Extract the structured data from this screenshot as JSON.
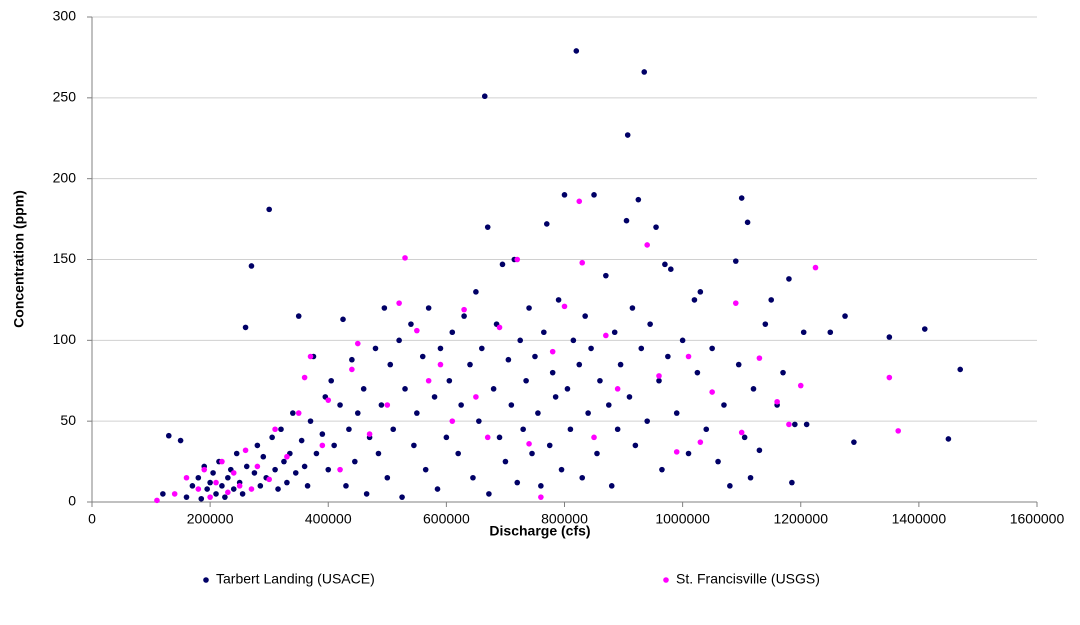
{
  "chart_data": {
    "type": "scatter",
    "x_label": "Discharge (cfs)",
    "y_label": "Concentration (ppm)",
    "xlim": [
      0,
      1600000
    ],
    "xticks": [
      0,
      200000,
      400000,
      600000,
      800000,
      1000000,
      1200000,
      1400000,
      1600000
    ],
    "ylim": [
      0,
      300
    ],
    "yticks": [
      0,
      50,
      100,
      150,
      200,
      250,
      300
    ],
    "grid": true,
    "legend": "bottom",
    "series": [
      {
        "name": "Tarbert Landing (USACE)",
        "color": "#000066",
        "x": [
          120000,
          130000,
          150000,
          160000,
          170000,
          180000,
          185000,
          190000,
          195000,
          200000,
          205000,
          210000,
          215000,
          220000,
          225000,
          230000,
          235000,
          240000,
          245000,
          250000,
          255000,
          260000,
          262000,
          270000,
          275000,
          280000,
          285000,
          290000,
          295000,
          300000,
          305000,
          310000,
          315000,
          320000,
          325000,
          330000,
          335000,
          340000,
          345000,
          350000,
          355000,
          360000,
          365000,
          370000,
          375000,
          380000,
          390000,
          395000,
          400000,
          405000,
          410000,
          420000,
          425000,
          430000,
          435000,
          440000,
          445000,
          450000,
          460000,
          465000,
          470000,
          480000,
          485000,
          490000,
          495000,
          500000,
          505000,
          510000,
          520000,
          525000,
          530000,
          540000,
          545000,
          550000,
          560000,
          565000,
          570000,
          580000,
          585000,
          590000,
          600000,
          605000,
          610000,
          620000,
          625000,
          630000,
          640000,
          645000,
          650000,
          655000,
          660000,
          665000,
          670000,
          672000,
          680000,
          685000,
          690000,
          695000,
          700000,
          705000,
          710000,
          715000,
          720000,
          725000,
          730000,
          735000,
          740000,
          745000,
          750000,
          755000,
          760000,
          765000,
          770000,
          775000,
          780000,
          785000,
          790000,
          795000,
          800000,
          805000,
          810000,
          815000,
          820000,
          825000,
          830000,
          835000,
          840000,
          845000,
          850000,
          855000,
          860000,
          870000,
          875000,
          880000,
          885000,
          890000,
          895000,
          905000,
          907000,
          910000,
          915000,
          920000,
          925000,
          930000,
          935000,
          940000,
          945000,
          955000,
          960000,
          965000,
          970000,
          975000,
          980000,
          990000,
          1000000,
          1010000,
          1020000,
          1025000,
          1030000,
          1040000,
          1050000,
          1060000,
          1070000,
          1080000,
          1090000,
          1095000,
          1100000,
          1105000,
          1110000,
          1115000,
          1120000,
          1130000,
          1140000,
          1150000,
          1160000,
          1170000,
          1180000,
          1185000,
          1190000,
          1205000,
          1210000,
          1250000,
          1275000,
          1290000,
          1350000,
          1410000,
          1450000,
          1470000
        ],
        "values": [
          5,
          41,
          38,
          3,
          10,
          15,
          2,
          22,
          8,
          12,
          18,
          5,
          25,
          10,
          3,
          15,
          20,
          8,
          30,
          12,
          5,
          108,
          22,
          146,
          18,
          35,
          10,
          28,
          15,
          181,
          40,
          20,
          8,
          45,
          25,
          12,
          30,
          55,
          18,
          115,
          38,
          22,
          10,
          50,
          90,
          30,
          42,
          65,
          20,
          75,
          35,
          60,
          113,
          10,
          45,
          88,
          25,
          55,
          70,
          5,
          40,
          95,
          30,
          60,
          120,
          15,
          85,
          45,
          100,
          3,
          70,
          110,
          35,
          55,
          90,
          20,
          120,
          65,
          8,
          95,
          40,
          75,
          105,
          30,
          60,
          115,
          85,
          15,
          130,
          50,
          95,
          251,
          170,
          5,
          70,
          110,
          40,
          147,
          25,
          88,
          60,
          150,
          12,
          100,
          45,
          75,
          120,
          30,
          90,
          55,
          10,
          105,
          172,
          35,
          80,
          65,
          125,
          20,
          190,
          70,
          45,
          100,
          279,
          85,
          15,
          115,
          55,
          95,
          190,
          30,
          75,
          140,
          60,
          10,
          105,
          45,
          85,
          174,
          227,
          65,
          120,
          35,
          187,
          95,
          266,
          50,
          110,
          170,
          75,
          20,
          147,
          90,
          144,
          55,
          100,
          30,
          125,
          80,
          130,
          45,
          95,
          25,
          60,
          10,
          149,
          85,
          188,
          40,
          173,
          15,
          70,
          32,
          110,
          125,
          60,
          80,
          138,
          12,
          48,
          105,
          48,
          105,
          115,
          37,
          102,
          107,
          39,
          82
        ]
      },
      {
        "name": "St. Francisville (USGS)",
        "color": "#ff00ff",
        "x": [
          110000,
          140000,
          160000,
          180000,
          190000,
          200000,
          210000,
          220000,
          230000,
          240000,
          250000,
          260000,
          270000,
          280000,
          300000,
          310000,
          330000,
          350000,
          360000,
          370000,
          390000,
          400000,
          420000,
          440000,
          450000,
          470000,
          500000,
          520000,
          530000,
          550000,
          570000,
          590000,
          610000,
          630000,
          650000,
          670000,
          690000,
          720000,
          740000,
          760000,
          780000,
          800000,
          825000,
          830000,
          850000,
          870000,
          890000,
          940000,
          960000,
          990000,
          1010000,
          1030000,
          1050000,
          1090000,
          1100000,
          1130000,
          1160000,
          1180000,
          1200000,
          1225000,
          1350000,
          1365000
        ],
        "values": [
          1,
          5,
          15,
          8,
          20,
          3,
          12,
          25,
          6,
          18,
          10,
          32,
          8,
          22,
          14,
          45,
          28,
          55,
          77,
          90,
          35,
          63,
          20,
          82,
          98,
          42,
          60,
          123,
          151,
          106,
          75,
          85,
          50,
          119,
          65,
          40,
          108,
          150,
          36,
          3,
          93,
          121,
          186,
          148,
          40,
          103,
          70,
          159,
          78,
          31,
          90,
          37,
          68,
          123,
          43,
          89,
          62,
          48,
          72,
          145,
          77,
          44
        ]
      }
    ]
  }
}
